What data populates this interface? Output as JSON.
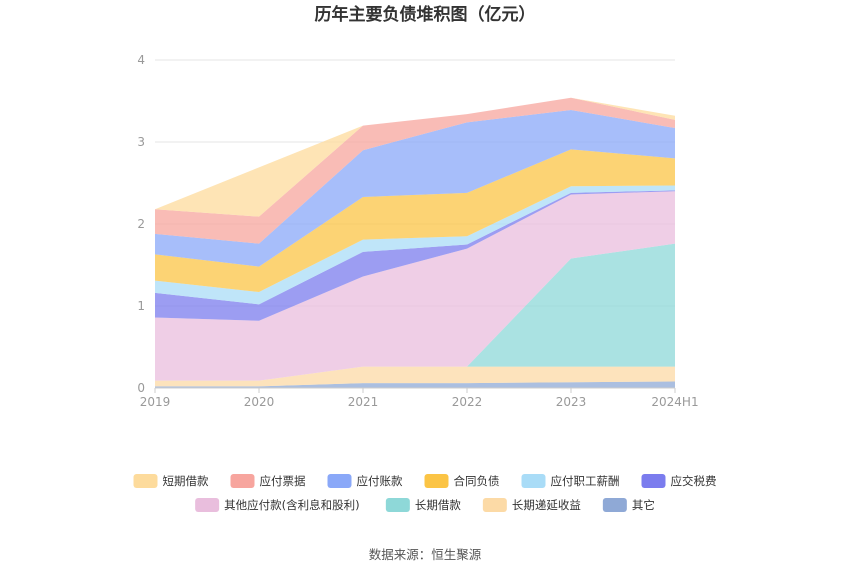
{
  "chart_data": {
    "type": "area",
    "stacked": true,
    "title": "历年主要负债堆积图（亿元）",
    "categories": [
      "2019",
      "2020",
      "2021",
      "2022",
      "2023",
      "2024H1"
    ],
    "ylim": [
      0,
      4
    ],
    "yticks": [
      "0",
      "1",
      "2",
      "3",
      "4"
    ],
    "grid": true,
    "legend_position": "bottom",
    "series": [
      {
        "name": "其它",
        "color": "#8fa9d6",
        "values": [
          0.02,
          0.02,
          0.06,
          0.06,
          0.07,
          0.08
        ]
      },
      {
        "name": "长期递延收益",
        "color": "#fcdaa6",
        "values": [
          0.07,
          0.07,
          0.2,
          0.2,
          0.19,
          0.18
        ]
      },
      {
        "name": "长期借款",
        "color": "#8ed8d8",
        "values": [
          0.0,
          0.0,
          0.0,
          0.0,
          1.32,
          1.5
        ]
      },
      {
        "name": "其他应付款(含利息和股利)",
        "color": "#e9bedd",
        "values": [
          0.77,
          0.73,
          1.1,
          1.44,
          0.78,
          0.64
        ]
      },
      {
        "name": "应交税费",
        "color": "#7b7cee",
        "values": [
          0.3,
          0.2,
          0.3,
          0.05,
          0.02,
          0.01
        ]
      },
      {
        "name": "应付职工薪酬",
        "color": "#a9dcf7",
        "values": [
          0.15,
          0.15,
          0.15,
          0.1,
          0.08,
          0.06
        ]
      },
      {
        "name": "合同负债",
        "color": "#fbc445",
        "values": [
          0.32,
          0.31,
          0.52,
          0.53,
          0.45,
          0.33
        ]
      },
      {
        "name": "应付账款",
        "color": "#8aa8f8",
        "values": [
          0.25,
          0.28,
          0.57,
          0.86,
          0.48,
          0.37
        ]
      },
      {
        "name": "应付票据",
        "color": "#f7a59e",
        "values": [
          0.3,
          0.33,
          0.3,
          0.1,
          0.15,
          0.1
        ]
      },
      {
        "name": "短期借款",
        "color": "#fddb9c",
        "values": [
          0.0,
          0.6,
          0.0,
          0.0,
          0.0,
          0.05
        ]
      }
    ],
    "legend_order": [
      "短期借款",
      "应付票据",
      "应付账款",
      "合同负债",
      "应付职工薪酬",
      "应交税费",
      "其他应付款(含利息和股利)",
      "长期借款",
      "长期递延收益",
      "其它"
    ]
  },
  "footer": {
    "source": "数据来源：恒生聚源"
  }
}
